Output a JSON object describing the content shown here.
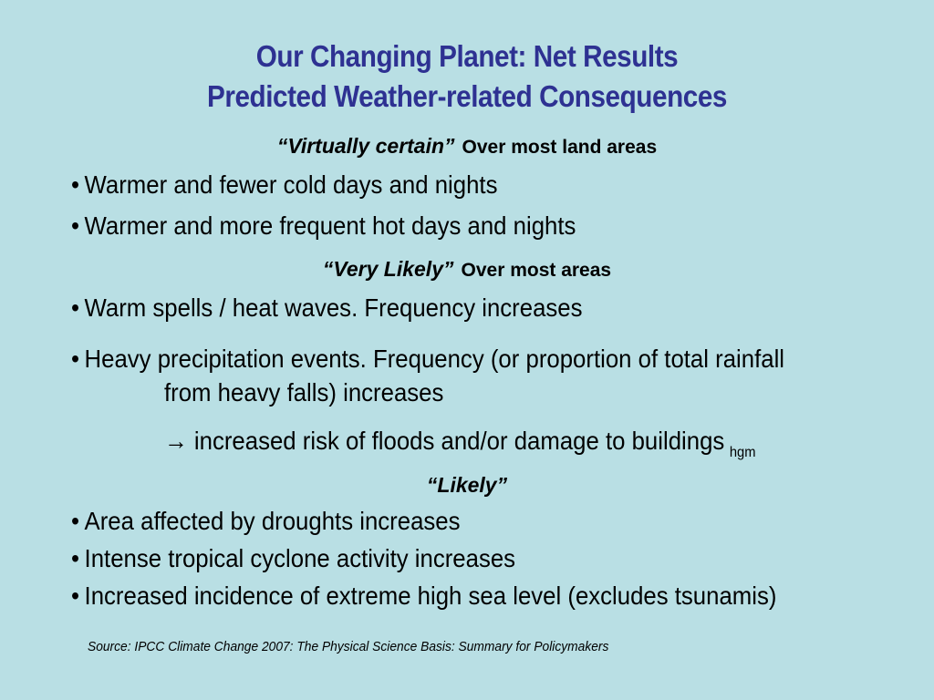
{
  "slide": {
    "title_line1": "Our Changing Planet: Net Results",
    "title_line2": "Predicted Weather-related Consequences",
    "section1": {
      "qualifier": "“Virtually certain”",
      "scope": "Over most land areas",
      "bullets": [
        "Warmer and fewer cold days and nights",
        "Warmer and more frequent hot days and nights"
      ]
    },
    "section2": {
      "qualifier": "“Very Likely”",
      "scope": "Over most areas",
      "bullets": [
        "Warm spells / heat waves. Frequency increases",
        "Heavy precipitation events. Frequency (or proportion of total rainfall"
      ],
      "continuation": "from heavy falls) increases",
      "consequence": "→ increased risk of floods and/or damage to buildings",
      "initials": "hgm"
    },
    "section3": {
      "qualifier": "“Likely”",
      "bullets": [
        "Area affected by droughts increases",
        "Intense tropical cyclone activity increases",
        "Increased incidence of extreme high sea level (excludes tsunamis)"
      ]
    },
    "bullet_glyph": "•",
    "source": "Source: IPCC Climate Change 2007: The Physical Science Basis: Summary for Policymakers"
  }
}
